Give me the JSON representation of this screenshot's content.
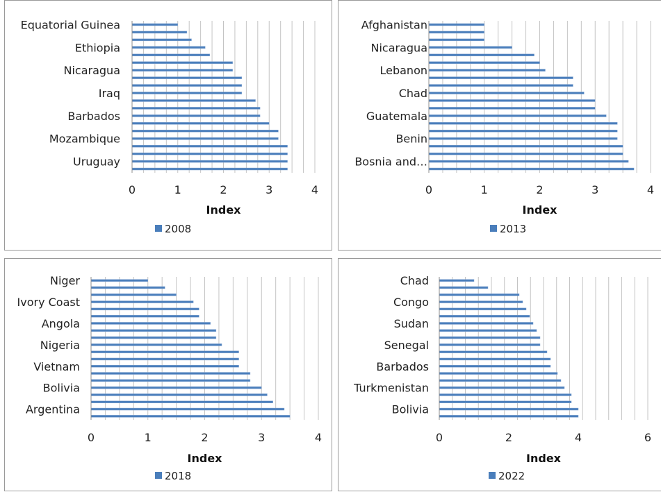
{
  "colors": {
    "bar": "#4a7ebb",
    "bar_highlight": "#89a9d4",
    "grid": "#c4c4c4",
    "axis": "#8c8c8c"
  },
  "chart_data": [
    {
      "type": "bar",
      "orientation": "horizontal",
      "xlabel": "Index",
      "xlim": [
        0,
        4
      ],
      "xticks": [
        0,
        1,
        2,
        3,
        4
      ],
      "legend": "2008",
      "category_labels": [
        "Equatorial Guinea",
        "Ethiopia",
        "Nicaragua",
        "Iraq",
        "Barbados",
        "Mozambique",
        "Uruguay"
      ],
      "values": [
        1.0,
        1.2,
        1.3,
        1.6,
        1.7,
        2.2,
        2.2,
        2.4,
        2.4,
        2.4,
        2.7,
        2.8,
        2.8,
        3.0,
        3.2,
        3.2,
        3.4,
        3.4,
        3.4,
        3.4
      ]
    },
    {
      "type": "bar",
      "orientation": "horizontal",
      "xlabel": "Index",
      "xlim": [
        0,
        4
      ],
      "xticks": [
        0,
        1,
        2,
        3,
        4
      ],
      "legend": "2013",
      "category_labels": [
        "Afghanistan",
        "Nicaragua",
        "Lebanon",
        "Chad",
        "Guatemala",
        "Benin",
        "Bosnia and…"
      ],
      "values": [
        1.0,
        1.0,
        1.0,
        1.5,
        1.9,
        2.0,
        2.1,
        2.6,
        2.6,
        2.8,
        3.0,
        3.0,
        3.2,
        3.4,
        3.4,
        3.4,
        3.5,
        3.5,
        3.6,
        3.7
      ]
    },
    {
      "type": "bar",
      "orientation": "horizontal",
      "xlabel": "Index",
      "xlim": [
        0,
        4
      ],
      "xticks": [
        0,
        1,
        2,
        3,
        4
      ],
      "legend": "2018",
      "category_labels": [
        "Niger",
        "Ivory Coast",
        "Angola",
        "Nigeria",
        "Vietnam",
        "Bolivia",
        "Argentina"
      ],
      "values": [
        1.0,
        1.3,
        1.5,
        1.8,
        1.9,
        1.9,
        2.1,
        2.2,
        2.2,
        2.3,
        2.6,
        2.6,
        2.6,
        2.8,
        2.8,
        3.0,
        3.1,
        3.2,
        3.4,
        3.5
      ]
    },
    {
      "type": "bar",
      "orientation": "horizontal",
      "xlabel": "Index",
      "xlim": [
        0,
        6
      ],
      "xticks": [
        0,
        2,
        4,
        6
      ],
      "legend": "2022",
      "category_labels": [
        "Chad",
        "Congo",
        "Sudan",
        "Senegal",
        "Barbados",
        "Turkmenistan",
        "Bolivia"
      ],
      "values": [
        1.0,
        1.4,
        2.3,
        2.4,
        2.5,
        2.6,
        2.7,
        2.8,
        2.9,
        2.9,
        3.1,
        3.2,
        3.2,
        3.4,
        3.5,
        3.6,
        3.8,
        3.8,
        4.0,
        4.0
      ]
    }
  ]
}
